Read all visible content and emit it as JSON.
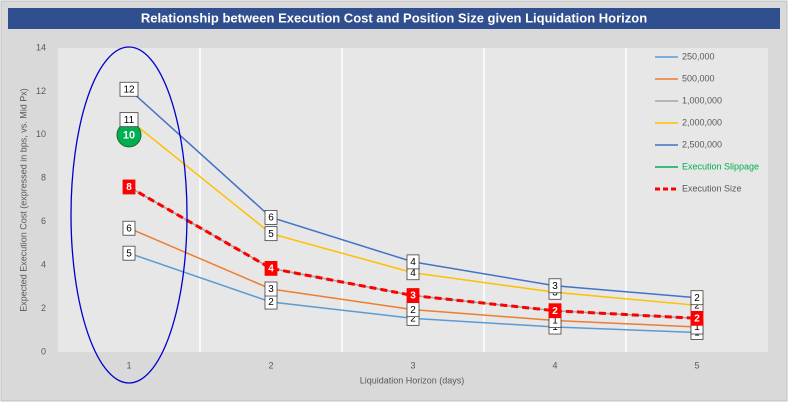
{
  "chart_data": {
    "type": "line",
    "title": "Relationship between Execution Cost and Position Size given Liquidation Horizon",
    "x_label": "Liquidation Horizon (days)",
    "y_label": "Expected Execution Cost (expressed in bps, vs. Mid Px)",
    "categories": [
      "1",
      "2",
      "3",
      "4",
      "5"
    ],
    "ylim": [
      0,
      14
    ],
    "yticks": [
      0,
      2,
      4,
      6,
      8,
      10,
      12,
      14
    ],
    "grid": "vertical",
    "legend": "right",
    "series": [
      {
        "name": "250,000",
        "color": "#5b9bd5",
        "values": [
          4.55,
          2.3,
          1.55,
          1.15,
          0.9
        ],
        "value_labels": [
          "5",
          "2",
          "2",
          "1",
          "1"
        ]
      },
      {
        "name": "500,000",
        "color": "#ed7d31",
        "values": [
          5.7,
          2.9,
          1.95,
          1.45,
          1.15
        ],
        "value_labels": [
          "6",
          "3",
          "2",
          "1",
          "1"
        ]
      },
      {
        "name": "1,000,000",
        "color": "#a5a5a5",
        "values": [
          7.6,
          3.85,
          2.6,
          1.9,
          1.55
        ]
      },
      {
        "name": "2,000,000",
        "color": "#ffc000",
        "values": [
          10.7,
          5.45,
          3.65,
          2.75,
          2.15
        ],
        "value_labels": [
          "11",
          "5",
          "4",
          "3",
          "2"
        ]
      },
      {
        "name": "2,500,000",
        "color": "#4472c4",
        "values": [
          12.1,
          6.2,
          4.15,
          3.05,
          2.5
        ],
        "value_labels": [
          "12",
          "6",
          "4",
          "3",
          "2"
        ]
      },
      {
        "name": "Execution Slippage",
        "color": "#00b050",
        "values": [
          10,
          null,
          null,
          null,
          null
        ],
        "value_labels": [
          "10",
          null,
          null,
          null,
          null
        ]
      },
      {
        "name": "Execution Size",
        "color": "#ff0000",
        "dashed": true,
        "values": [
          7.6,
          3.85,
          2.6,
          1.9,
          1.55
        ],
        "value_labels": [
          "8",
          "4",
          "3",
          "2",
          "2"
        ]
      }
    ]
  }
}
